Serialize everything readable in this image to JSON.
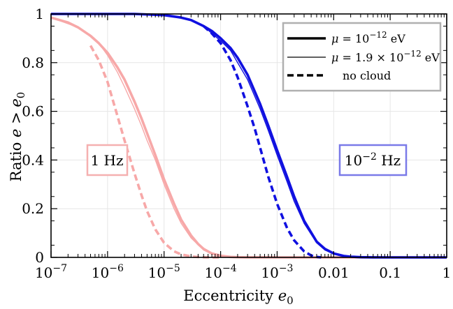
{
  "chart_data": {
    "type": "line",
    "xlabel": "Eccentricity e0",
    "ylabel": "Ratio e > e0",
    "xscale": "log",
    "xlim": [
      1e-07,
      1
    ],
    "ylim": [
      0,
      1
    ],
    "grid": true,
    "legend_position": "top-right",
    "x_tick_labels": [
      "10^-7",
      "10^-6",
      "10^-5",
      "10^-4",
      "10^-3",
      "0.01",
      "0.1",
      "1"
    ],
    "y_tick_labels": [
      "0",
      "0.2",
      "0.4",
      "0.6",
      "0.8",
      "1"
    ],
    "y_ticks": [
      0,
      0.2,
      0.4,
      0.6,
      0.8,
      1
    ],
    "legend": [
      {
        "label": "μ = 10^-12 eV",
        "style": "thick solid"
      },
      {
        "label": "μ = 1.9 × 10^-12 eV",
        "style": "thin solid"
      },
      {
        "label": "no cloud",
        "style": "dashed"
      }
    ],
    "annotations": [
      {
        "text": "1 Hz",
        "color": "#f5a0a0"
      },
      {
        "text": "10^-2 Hz",
        "color": "#7a7ae8"
      }
    ],
    "series": [
      {
        "group": "1 Hz",
        "legend": "μ = 10^-12 eV",
        "color": "#f7a8a8",
        "style": "thick",
        "x": [
          1e-07,
          2e-07,
          3e-07,
          5e-07,
          7e-07,
          1e-06,
          1.5e-06,
          2e-06,
          3e-06,
          4e-06,
          5e-06,
          7e-06,
          1e-05,
          1.5e-05,
          2e-05,
          3e-05,
          4e-05,
          5e-05,
          7e-05,
          0.0001,
          0.00015,
          0.0002,
          0.0003,
          0.001,
          0.01,
          1
        ],
        "y": [
          0.985,
          0.965,
          0.945,
          0.91,
          0.88,
          0.84,
          0.78,
          0.73,
          0.64,
          0.57,
          0.51,
          0.42,
          0.32,
          0.22,
          0.155,
          0.09,
          0.055,
          0.035,
          0.016,
          0.007,
          0.002,
          0.0008,
          0.0002,
          0,
          0,
          0
        ]
      },
      {
        "group": "1 Hz",
        "legend": "μ = 1.9 × 10^-12 eV",
        "color": "#f7a8a8",
        "style": "thin",
        "x": [
          1e-07,
          3e-07,
          5e-07,
          7e-07,
          1e-06,
          1.5e-06,
          2e-06,
          3e-06,
          4e-06,
          5e-06,
          7e-06,
          1e-05,
          1.5e-05,
          2e-05,
          3e-05,
          5e-05,
          7e-05,
          0.0001,
          0.00015,
          0.0002,
          0.0003,
          0.001,
          1
        ],
        "y": [
          0.985,
          0.945,
          0.91,
          0.88,
          0.83,
          0.76,
          0.7,
          0.61,
          0.54,
          0.48,
          0.4,
          0.3,
          0.2,
          0.14,
          0.08,
          0.03,
          0.014,
          0.006,
          0.002,
          0.0008,
          0.0002,
          0,
          0
        ]
      },
      {
        "group": "1 Hz",
        "legend": "no cloud",
        "color": "#f7a8a8",
        "style": "dashed",
        "x": [
          5e-07,
          7e-07,
          1e-06,
          1.5e-06,
          2e-06,
          3e-06,
          4e-06,
          5e-06,
          7e-06,
          1e-05,
          1.5e-05,
          2e-05,
          3e-05,
          4e-05,
          5e-05,
          7e-05,
          0.0001
        ],
        "y": [
          0.87,
          0.81,
          0.72,
          0.58,
          0.48,
          0.345,
          0.255,
          0.19,
          0.115,
          0.06,
          0.025,
          0.012,
          0.004,
          0.0015,
          0.0005,
          0.0001,
          0
        ]
      },
      {
        "group": "10^-2 Hz",
        "legend": "μ = 10^-12 eV",
        "color": "#1010e0",
        "style": "thick",
        "x": [
          1e-07,
          1e-06,
          3e-06,
          1e-05,
          2e-05,
          3e-05,
          5e-05,
          7e-05,
          0.0001,
          0.00015,
          0.0002,
          0.0003,
          0.0005,
          0.0007,
          0.001,
          0.0015,
          0.002,
          0.003,
          0.005,
          0.007,
          0.01,
          0.015,
          0.02,
          0.03,
          0.05,
          0.1,
          1
        ],
        "y": [
          1,
          1,
          1,
          0.995,
          0.985,
          0.975,
          0.95,
          0.93,
          0.9,
          0.86,
          0.82,
          0.75,
          0.63,
          0.54,
          0.44,
          0.33,
          0.25,
          0.15,
          0.065,
          0.035,
          0.016,
          0.006,
          0.003,
          0.001,
          0.0002,
          0,
          0
        ]
      },
      {
        "group": "10^-2 Hz",
        "legend": "μ = 1.9 × 10^-12 eV",
        "color": "#1010e0",
        "style": "thin",
        "x": [
          1e-07,
          1e-06,
          3e-06,
          1e-05,
          2e-05,
          3e-05,
          5e-05,
          7e-05,
          0.0001,
          0.00015,
          0.0002,
          0.0003,
          0.0005,
          0.0007,
          0.001,
          0.0015,
          0.002,
          0.003,
          0.005,
          0.007,
          0.01,
          0.015,
          0.02,
          0.03,
          0.05,
          0.1,
          1
        ],
        "y": [
          1,
          1,
          1,
          0.995,
          0.985,
          0.975,
          0.95,
          0.92,
          0.89,
          0.85,
          0.8,
          0.73,
          0.61,
          0.52,
          0.42,
          0.31,
          0.23,
          0.14,
          0.06,
          0.03,
          0.014,
          0.005,
          0.002,
          0.0008,
          0.0002,
          0,
          0
        ]
      },
      {
        "group": "10^-2 Hz",
        "legend": "no cloud",
        "color": "#1010e0",
        "style": "dashed",
        "x": [
          5e-05,
          7e-05,
          0.0001,
          0.00015,
          0.0002,
          0.0003,
          0.0004,
          0.0005,
          0.0007,
          0.001,
          0.0015,
          0.002,
          0.003,
          0.004,
          0.005,
          0.006
        ],
        "y": [
          0.95,
          0.92,
          0.88,
          0.81,
          0.74,
          0.62,
          0.53,
          0.45,
          0.33,
          0.22,
          0.12,
          0.07,
          0.025,
          0.008,
          0.002,
          0
        ]
      }
    ]
  }
}
